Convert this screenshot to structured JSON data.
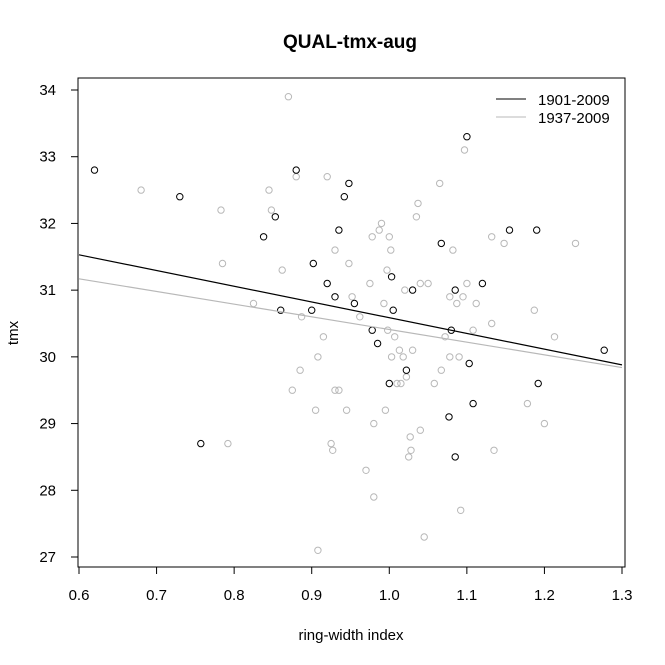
{
  "chart_data": {
    "type": "scatter",
    "title": "QUAL-tmx-aug",
    "xlabel": "ring-width index",
    "ylabel": "tmx",
    "xlim": [
      0.6,
      1.3
    ],
    "ylim": [
      27,
      34
    ],
    "x_ticks": [
      "0.6",
      "0.7",
      "0.8",
      "0.9",
      "1.0",
      "1.1",
      "1.2",
      "1.3"
    ],
    "y_ticks": [
      "27",
      "28",
      "29",
      "30",
      "31",
      "32",
      "33",
      "34"
    ],
    "grid": false,
    "legend_position": "top-right",
    "series": [
      {
        "name": "1901-2009",
        "color": "#000000",
        "marker": "open-circle",
        "fit_line": [
          [
            0.6,
            31.53
          ],
          [
            1.3,
            29.88
          ]
        ],
        "points": [
          [
            0.62,
            32.8
          ],
          [
            0.73,
            32.4
          ],
          [
            0.757,
            28.7
          ],
          [
            0.838,
            31.8
          ],
          [
            0.853,
            32.1
          ],
          [
            0.86,
            30.7
          ],
          [
            0.88,
            32.8
          ],
          [
            0.9,
            30.7
          ],
          [
            0.902,
            31.4
          ],
          [
            0.92,
            31.1
          ],
          [
            0.93,
            30.9
          ],
          [
            0.935,
            31.9
          ],
          [
            0.942,
            32.4
          ],
          [
            0.948,
            32.6
          ],
          [
            0.955,
            30.8
          ],
          [
            0.978,
            30.4
          ],
          [
            0.985,
            30.2
          ],
          [
            1.0,
            29.6
          ],
          [
            1.003,
            31.2
          ],
          [
            1.005,
            30.7
          ],
          [
            1.022,
            29.8
          ],
          [
            1.03,
            31.0
          ],
          [
            1.067,
            31.7
          ],
          [
            1.077,
            29.1
          ],
          [
            1.08,
            30.4
          ],
          [
            1.085,
            31.0
          ],
          [
            1.085,
            28.5
          ],
          [
            1.1,
            33.3
          ],
          [
            1.103,
            29.9
          ],
          [
            1.108,
            29.3
          ],
          [
            1.12,
            31.1
          ],
          [
            1.155,
            31.9
          ],
          [
            1.19,
            31.9
          ],
          [
            1.192,
            29.6
          ],
          [
            1.277,
            30.1
          ]
        ]
      },
      {
        "name": "1937-2009",
        "color": "#b8b8b8",
        "marker": "open-circle",
        "fit_line": [
          [
            0.6,
            31.17
          ],
          [
            1.3,
            29.84
          ]
        ],
        "points": [
          [
            0.68,
            32.5
          ],
          [
            0.783,
            32.2
          ],
          [
            0.785,
            31.4
          ],
          [
            0.792,
            28.7
          ],
          [
            0.825,
            30.8
          ],
          [
            0.845,
            32.5
          ],
          [
            0.848,
            32.2
          ],
          [
            0.862,
            31.3
          ],
          [
            0.87,
            33.9
          ],
          [
            0.875,
            29.5
          ],
          [
            0.88,
            32.7
          ],
          [
            0.885,
            29.8
          ],
          [
            0.887,
            30.6
          ],
          [
            0.905,
            29.2
          ],
          [
            0.908,
            30.0
          ],
          [
            0.915,
            30.3
          ],
          [
            0.92,
            32.7
          ],
          [
            0.925,
            28.7
          ],
          [
            0.927,
            28.6
          ],
          [
            0.93,
            31.6
          ],
          [
            0.93,
            29.5
          ],
          [
            0.935,
            29.5
          ],
          [
            0.945,
            29.2
          ],
          [
            0.948,
            31.4
          ],
          [
            0.908,
            27.1
          ],
          [
            0.952,
            30.9
          ],
          [
            0.962,
            30.6
          ],
          [
            0.97,
            28.3
          ],
          [
            0.975,
            31.1
          ],
          [
            0.978,
            31.8
          ],
          [
            0.98,
            27.9
          ],
          [
            0.98,
            29.0
          ],
          [
            0.987,
            31.9
          ],
          [
            0.99,
            32.0
          ],
          [
            0.993,
            30.8
          ],
          [
            0.995,
            29.2
          ],
          [
            0.997,
            31.3
          ],
          [
            0.998,
            30.4
          ],
          [
            1.0,
            31.8
          ],
          [
            1.002,
            31.6
          ],
          [
            1.003,
            30.0
          ],
          [
            1.007,
            30.3
          ],
          [
            1.01,
            29.6
          ],
          [
            1.013,
            30.1
          ],
          [
            1.015,
            29.6
          ],
          [
            1.018,
            30.0
          ],
          [
            1.02,
            31.0
          ],
          [
            1.022,
            29.7
          ],
          [
            1.025,
            28.5
          ],
          [
            1.027,
            28.8
          ],
          [
            1.028,
            28.6
          ],
          [
            1.03,
            30.1
          ],
          [
            1.035,
            32.1
          ],
          [
            1.037,
            32.3
          ],
          [
            1.04,
            28.9
          ],
          [
            1.04,
            31.1
          ],
          [
            1.045,
            27.3
          ],
          [
            1.05,
            31.1
          ],
          [
            1.058,
            29.6
          ],
          [
            1.065,
            32.6
          ],
          [
            1.067,
            29.8
          ],
          [
            1.072,
            30.3
          ],
          [
            1.078,
            30.0
          ],
          [
            1.078,
            30.9
          ],
          [
            1.082,
            31.6
          ],
          [
            1.087,
            30.8
          ],
          [
            1.09,
            30.0
          ],
          [
            1.092,
            27.7
          ],
          [
            1.095,
            30.9
          ],
          [
            1.097,
            33.1
          ],
          [
            1.1,
            31.1
          ],
          [
            1.108,
            30.4
          ],
          [
            1.112,
            30.8
          ],
          [
            1.132,
            31.8
          ],
          [
            1.132,
            30.5
          ],
          [
            1.135,
            28.6
          ],
          [
            1.148,
            31.7
          ],
          [
            1.178,
            29.3
          ],
          [
            1.187,
            30.7
          ],
          [
            1.2,
            29.0
          ],
          [
            1.213,
            30.3
          ],
          [
            1.24,
            31.7
          ]
        ]
      }
    ]
  }
}
